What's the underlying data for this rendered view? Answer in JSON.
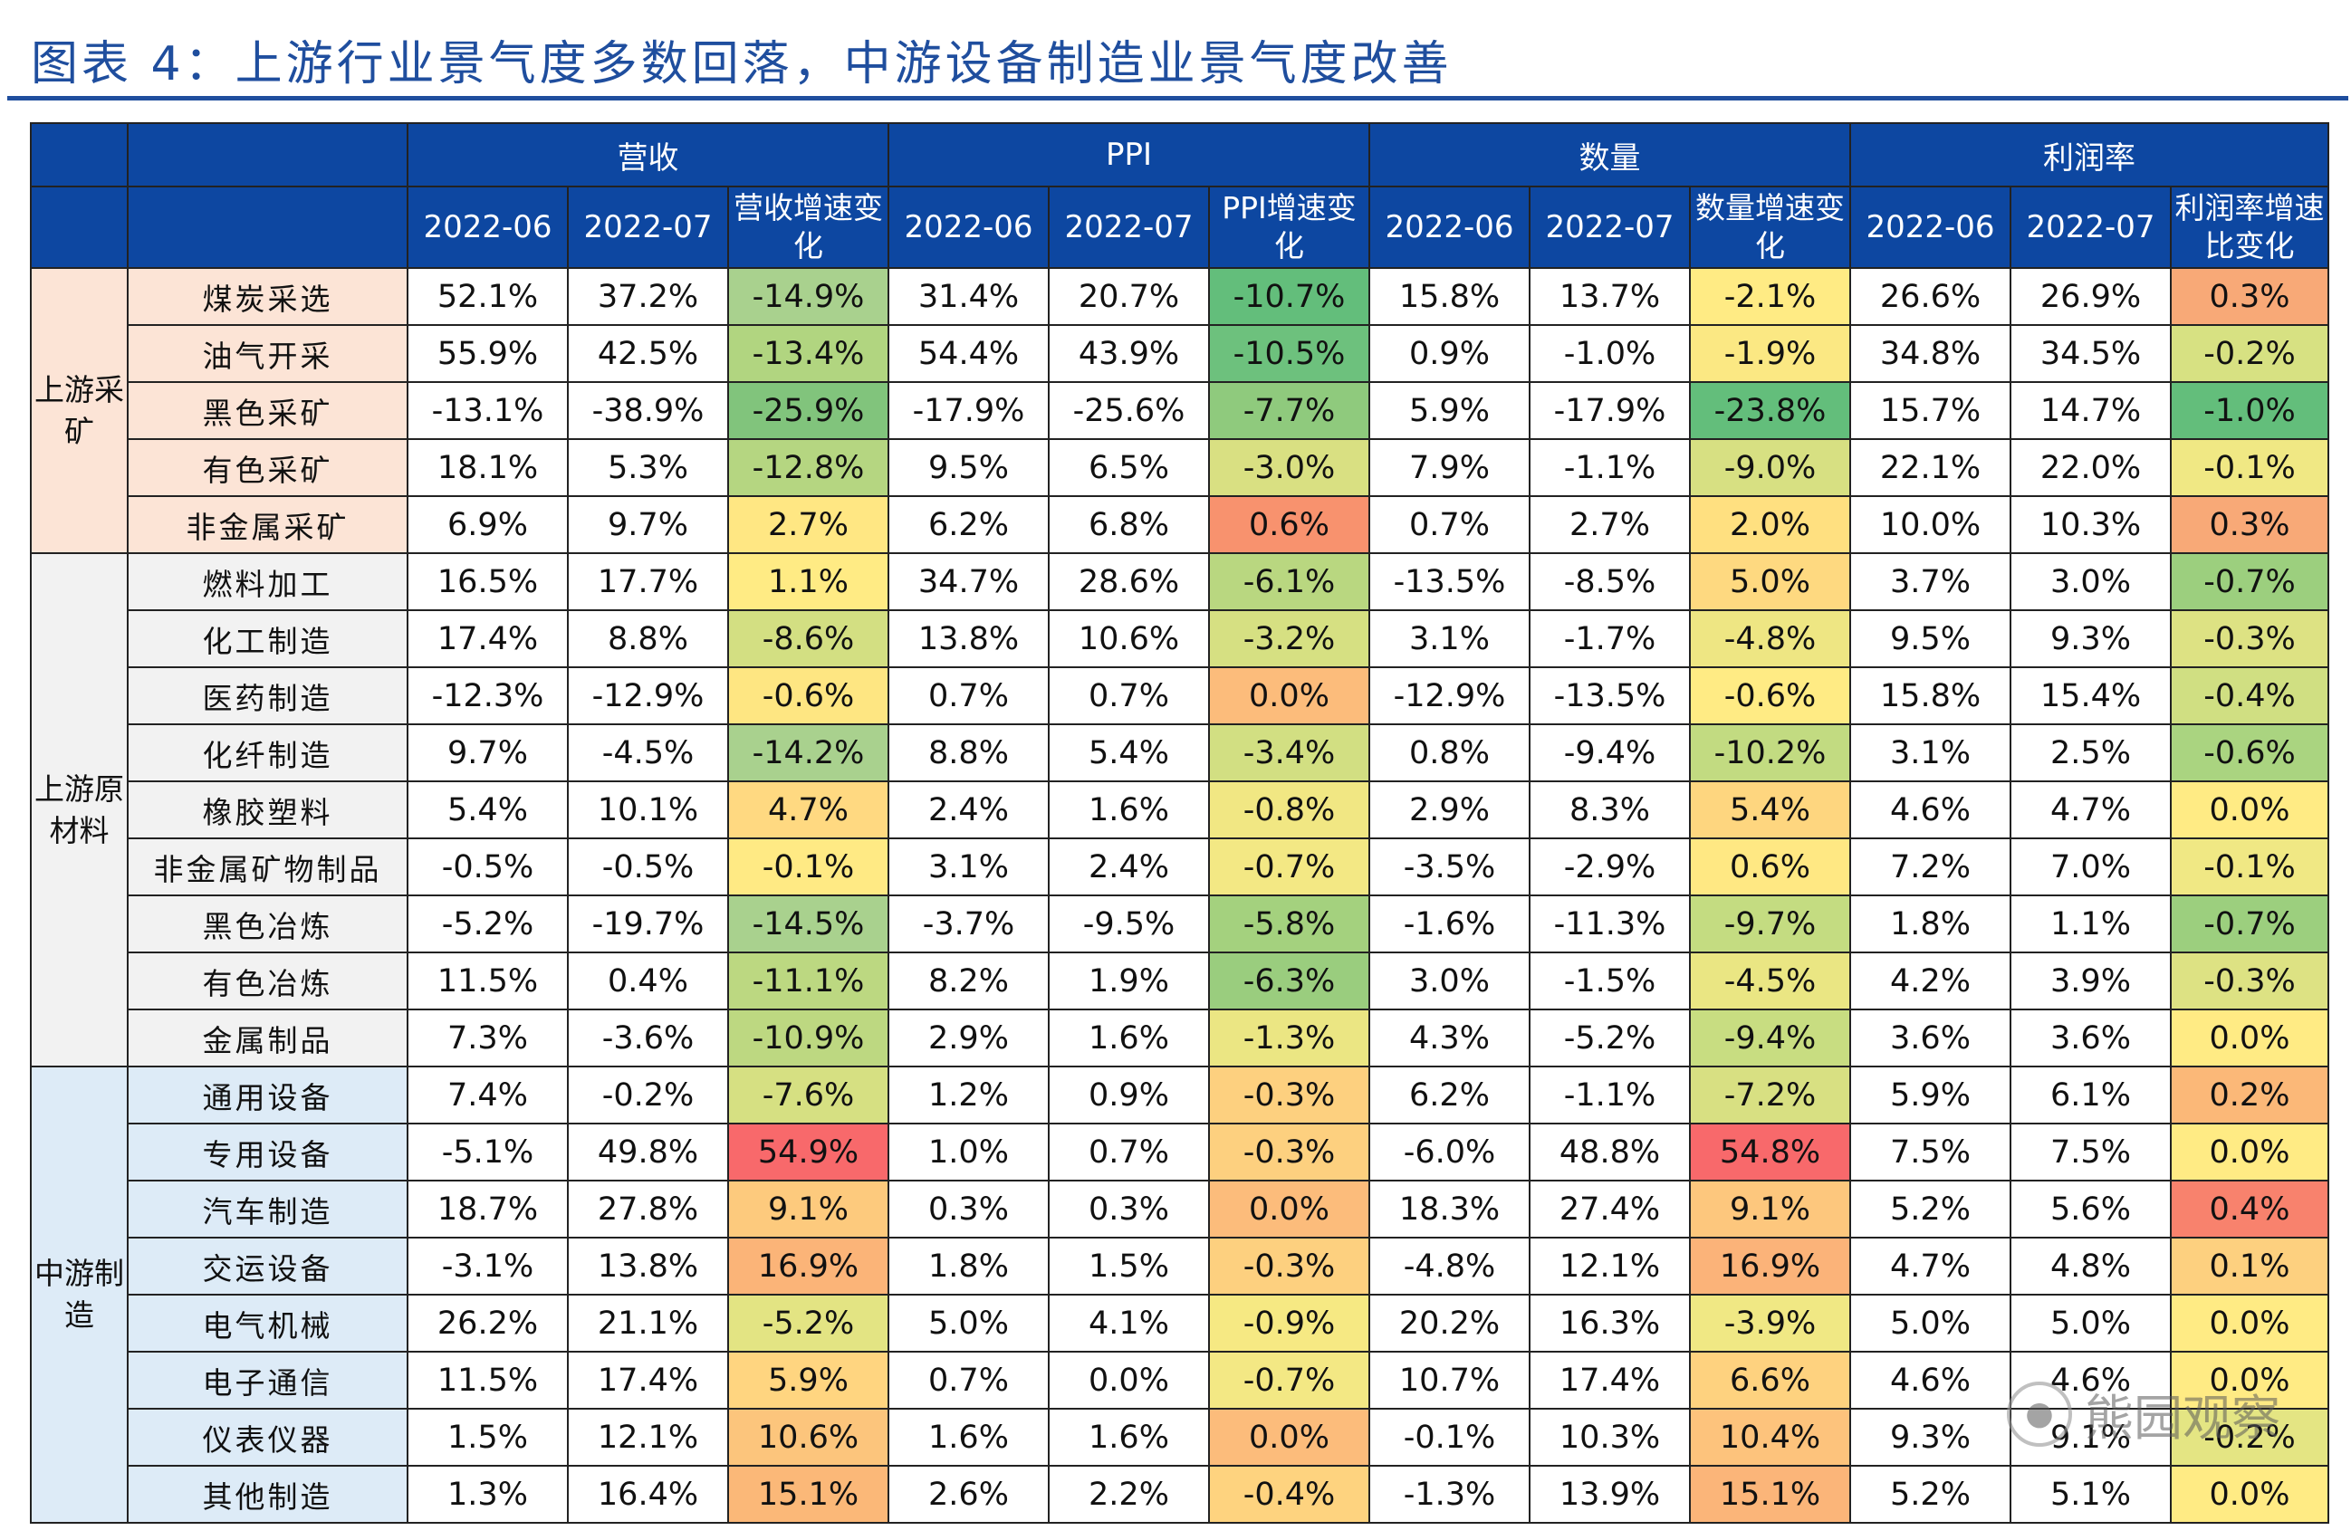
{
  "title": "图表 4：上游行业景气度多数回落，中游设备制造业景气度改善",
  "watermark": "熊园观察",
  "header": {
    "groups": [
      "营收",
      "PPI",
      "数量",
      "利润率"
    ],
    "subheaders": [
      "2022-06",
      "2022-07",
      "营收增速变化",
      "2022-06",
      "2022-07",
      "PPI增速变化",
      "2022-06",
      "2022-07",
      "数量增速变化",
      "2022-06",
      "2022-07",
      "利润率增速比变化"
    ]
  },
  "colors": {
    "header_bg": "#0d47a1",
    "group_upstream_mining": "#fce4d6",
    "group_upstream_materials": "#f2f2f2",
    "group_midstream": "#ddebf7"
  },
  "groups": [
    {
      "label": "上游采矿",
      "bg": "#fce4d6",
      "rows": [
        {
          "name": "煤炭采选",
          "values": [
            "52.1%",
            "37.2%",
            "-14.9%",
            "31.4%",
            "20.7%",
            "-10.7%",
            "15.8%",
            "13.7%",
            "-2.1%",
            "26.6%",
            "26.9%",
            "0.3%"
          ],
          "heat": [
            "#a9d18e",
            "#63be7b",
            "#ffeb84",
            "#f8a977"
          ]
        },
        {
          "name": "油气开采",
          "values": [
            "55.9%",
            "42.5%",
            "-13.4%",
            "54.4%",
            "43.9%",
            "-10.5%",
            "0.9%",
            "-1.0%",
            "-1.9%",
            "34.8%",
            "34.5%",
            "-0.2%"
          ],
          "heat": [
            "#b1d580",
            "#6dc17d",
            "#fbe883",
            "#d7e182"
          ]
        },
        {
          "name": "黑色采矿",
          "values": [
            "-13.1%",
            "-38.9%",
            "-25.9%",
            "-17.9%",
            "-25.6%",
            "-7.7%",
            "5.9%",
            "-17.9%",
            "-23.8%",
            "15.7%",
            "14.7%",
            "-1.0%"
          ],
          "heat": [
            "#81c47c",
            "#8fca7d",
            "#63be7b",
            "#63be7b"
          ]
        },
        {
          "name": "有色采矿",
          "values": [
            "18.1%",
            "5.3%",
            "-12.8%",
            "9.5%",
            "6.5%",
            "-3.0%",
            "7.9%",
            "-1.1%",
            "-9.0%",
            "22.1%",
            "22.0%",
            "-0.1%"
          ],
          "heat": [
            "#b5d681",
            "#d9e082",
            "#d7e082",
            "#f0e884"
          ]
        },
        {
          "name": "非金属采矿",
          "values": [
            "6.9%",
            "9.7%",
            "2.7%",
            "6.2%",
            "6.8%",
            "0.6%",
            "0.7%",
            "2.7%",
            "2.0%",
            "10.0%",
            "10.3%",
            "0.3%"
          ],
          "heat": [
            "#ffe783",
            "#f8926e",
            "#ffe080",
            "#f8a977"
          ]
        }
      ]
    },
    {
      "label": "上游原材料",
      "bg": "#f2f2f2",
      "rows": [
        {
          "name": "燃料加工",
          "values": [
            "16.5%",
            "17.7%",
            "1.1%",
            "34.7%",
            "28.6%",
            "-6.1%",
            "-13.5%",
            "-8.5%",
            "5.0%",
            "3.7%",
            "3.0%",
            "-0.7%"
          ],
          "heat": [
            "#ffeb84",
            "#b9d780",
            "#fed980",
            "#9ccf7e"
          ]
        },
        {
          "name": "化工制造",
          "values": [
            "17.4%",
            "8.8%",
            "-8.6%",
            "13.8%",
            "10.6%",
            "-3.2%",
            "3.1%",
            "-1.7%",
            "-4.8%",
            "9.5%",
            "9.3%",
            "-0.3%"
          ],
          "heat": [
            "#d3df82",
            "#d6e082",
            "#eee683",
            "#dde283"
          ]
        },
        {
          "name": "医药制造",
          "values": [
            "-12.3%",
            "-12.9%",
            "-0.6%",
            "0.7%",
            "0.7%",
            "0.0%",
            "-12.9%",
            "-13.5%",
            "-0.6%",
            "15.8%",
            "15.4%",
            "-0.4%"
          ],
          "heat": [
            "#fee682",
            "#fcbc7b",
            "#ffeb84",
            "#d0df82"
          ]
        },
        {
          "name": "化纤制造",
          "values": [
            "9.7%",
            "-4.5%",
            "-14.2%",
            "8.8%",
            "5.4%",
            "-3.4%",
            "0.8%",
            "-9.4%",
            "-10.2%",
            "3.1%",
            "2.5%",
            "-0.6%"
          ],
          "heat": [
            "#a9d18e",
            "#d2df82",
            "#c2db81",
            "#aad480"
          ]
        },
        {
          "name": "橡胶塑料",
          "values": [
            "5.4%",
            "10.1%",
            "4.7%",
            "2.4%",
            "1.6%",
            "-0.8%",
            "2.9%",
            "8.3%",
            "5.4%",
            "4.6%",
            "4.7%",
            "0.0%"
          ],
          "heat": [
            "#ffd981",
            "#f1e783",
            "#fed67f",
            "#ffeb84"
          ]
        },
        {
          "name": "非金属矿物制品",
          "values": [
            "-0.5%",
            "-0.5%",
            "-0.1%",
            "3.1%",
            "2.4%",
            "-0.7%",
            "-3.5%",
            "-2.9%",
            "0.6%",
            "7.2%",
            "7.0%",
            "-0.1%"
          ],
          "heat": [
            "#ffea84",
            "#f3e884",
            "#ffe883",
            "#f0e884"
          ]
        },
        {
          "name": "黑色冶炼",
          "values": [
            "-5.2%",
            "-19.7%",
            "-14.5%",
            "-3.7%",
            "-9.5%",
            "-5.8%",
            "-1.6%",
            "-11.3%",
            "-9.7%",
            "1.8%",
            "1.1%",
            "-0.7%"
          ],
          "heat": [
            "#a9d18e",
            "#a4d17e",
            "#c4dc81",
            "#9ccf7e"
          ]
        },
        {
          "name": "有色冶炼",
          "values": [
            "11.5%",
            "0.4%",
            "-11.1%",
            "8.2%",
            "1.9%",
            "-6.3%",
            "3.0%",
            "-1.5%",
            "-4.5%",
            "4.2%",
            "3.9%",
            "-0.3%"
          ],
          "heat": [
            "#bcd881",
            "#9acd7e",
            "#eae683",
            "#dde283"
          ]
        },
        {
          "name": "金属制品",
          "values": [
            "7.3%",
            "-3.6%",
            "-10.9%",
            "2.9%",
            "1.6%",
            "-1.3%",
            "4.3%",
            "-5.2%",
            "-9.4%",
            "3.6%",
            "3.6%",
            "0.0%"
          ],
          "heat": [
            "#bdd881",
            "#ebe683",
            "#c8dd81",
            "#ffeb84"
          ]
        }
      ]
    },
    {
      "label": "中游制造",
      "bg": "#ddebf7",
      "rows": [
        {
          "name": "通用设备",
          "values": [
            "7.4%",
            "-0.2%",
            "-7.6%",
            "1.2%",
            "0.9%",
            "-0.3%",
            "6.2%",
            "-1.1%",
            "-7.2%",
            "5.9%",
            "6.1%",
            "0.2%"
          ],
          "heat": [
            "#d6e082",
            "#fdd07f",
            "#d8e082",
            "#fbb878"
          ]
        },
        {
          "name": "专用设备",
          "values": [
            "-5.1%",
            "49.8%",
            "54.9%",
            "1.0%",
            "0.7%",
            "-0.3%",
            "-6.0%",
            "48.8%",
            "54.8%",
            "7.5%",
            "7.5%",
            "0.0%"
          ],
          "heat": [
            "#f8696b",
            "#fdd07f",
            "#f8696b",
            "#ffeb84"
          ]
        },
        {
          "name": "汽车制造",
          "values": [
            "18.7%",
            "27.8%",
            "9.1%",
            "0.3%",
            "0.3%",
            "0.0%",
            "18.3%",
            "27.4%",
            "9.1%",
            "5.2%",
            "5.6%",
            "0.4%"
          ],
          "heat": [
            "#fdca7d",
            "#fcbc7b",
            "#fdc77d",
            "#f8826d"
          ]
        },
        {
          "name": "交运设备",
          "values": [
            "-3.1%",
            "13.8%",
            "16.9%",
            "1.8%",
            "1.5%",
            "-0.3%",
            "-4.8%",
            "12.1%",
            "16.9%",
            "4.7%",
            "4.8%",
            "0.1%"
          ],
          "heat": [
            "#fbb478",
            "#fdd07f",
            "#fbb379",
            "#fdd07f"
          ]
        },
        {
          "name": "电气机械",
          "values": [
            "26.2%",
            "21.1%",
            "-5.2%",
            "5.0%",
            "4.1%",
            "-0.9%",
            "20.2%",
            "16.3%",
            "-3.9%",
            "5.0%",
            "5.0%",
            "0.0%"
          ],
          "heat": [
            "#e3e483",
            "#f6e983",
            "#f0e884",
            "#ffeb84"
          ]
        },
        {
          "name": "电子通信",
          "values": [
            "11.5%",
            "17.4%",
            "5.9%",
            "0.7%",
            "0.0%",
            "-0.7%",
            "10.7%",
            "17.4%",
            "6.6%",
            "4.6%",
            "4.6%",
            "0.0%"
          ],
          "heat": [
            "#ffd580",
            "#f3e884",
            "#fed27f",
            "#ffeb84"
          ]
        },
        {
          "name": "仪表仪器",
          "values": [
            "1.5%",
            "12.1%",
            "10.6%",
            "1.6%",
            "1.6%",
            "0.0%",
            "-0.1%",
            "10.3%",
            "10.4%",
            "9.3%",
            "9.1%",
            "-0.2%"
          ],
          "heat": [
            "#fcc57c",
            "#fcbc7b",
            "#fdc37c",
            "#e4e583"
          ]
        },
        {
          "name": "其他制造",
          "values": [
            "1.3%",
            "16.4%",
            "15.1%",
            "2.6%",
            "2.2%",
            "-0.4%",
            "-1.3%",
            "13.9%",
            "15.1%",
            "5.2%",
            "5.1%",
            "0.0%"
          ],
          "heat": [
            "#fbb878",
            "#fed37f",
            "#fbb579",
            "#ffeb84"
          ]
        }
      ]
    }
  ]
}
